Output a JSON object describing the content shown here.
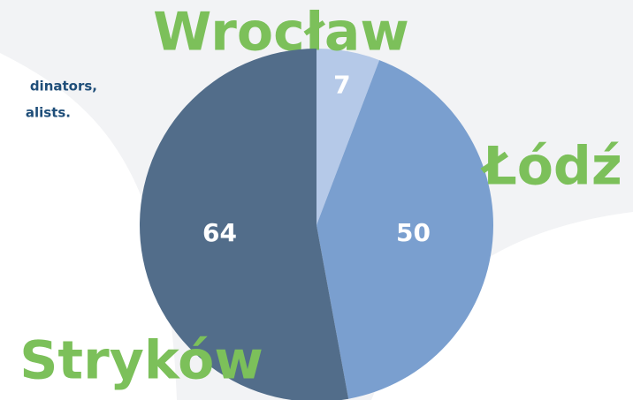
{
  "texts": [
    "dinators,",
    "alists."
  ],
  "chart_data": {
    "type": "pie",
    "categories": [
      "Wrocław",
      "Łódź",
      "Stryków"
    ],
    "values": [
      7,
      50,
      64
    ],
    "colors": [
      "#b5c9e8",
      "#7a9fcf",
      "#526d8a"
    ]
  }
}
